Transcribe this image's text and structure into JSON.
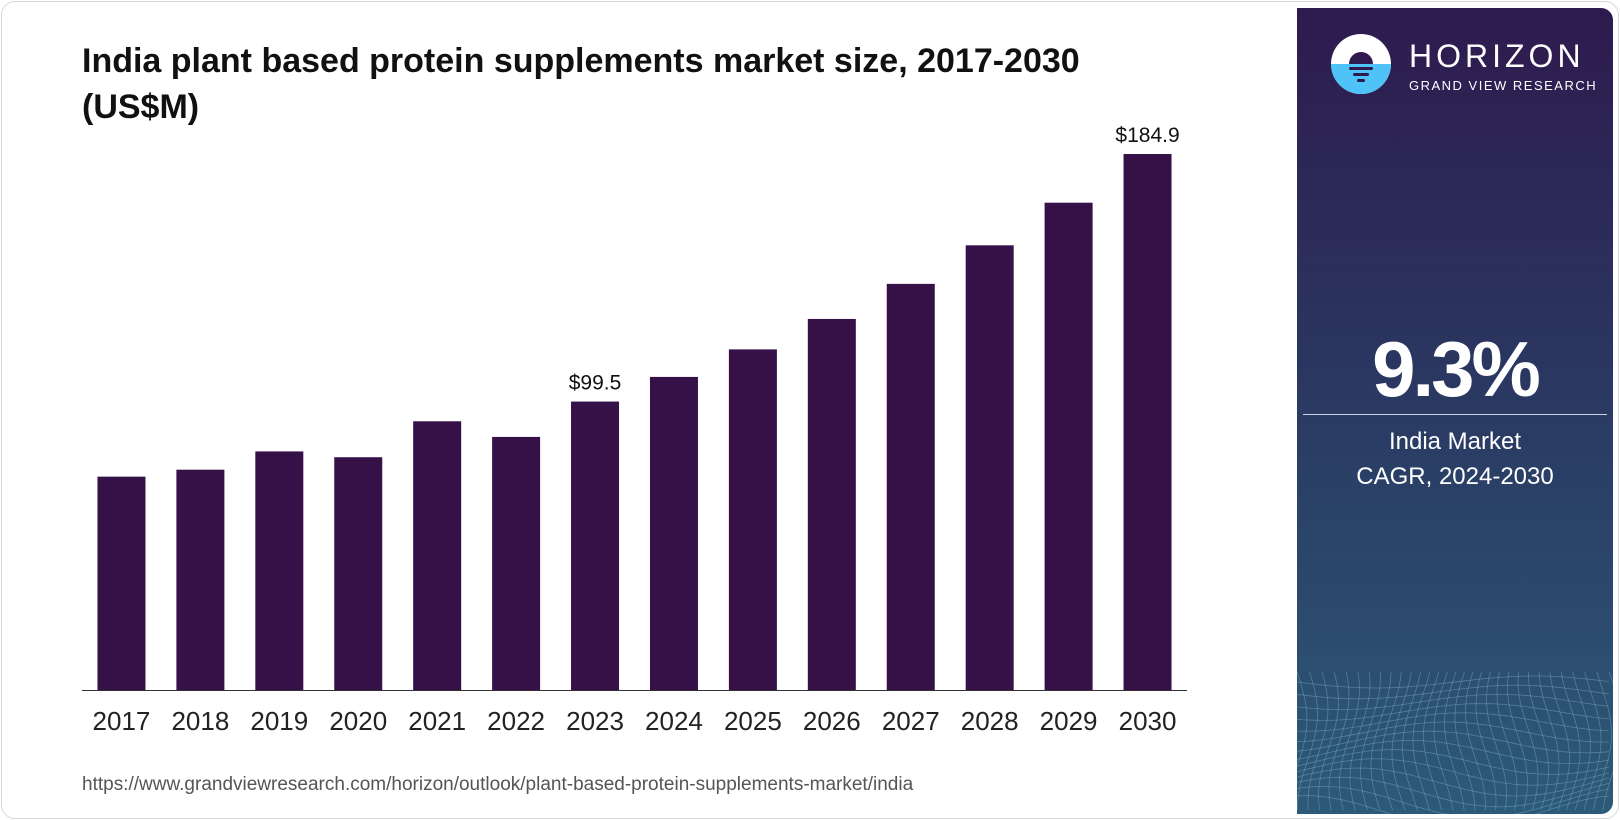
{
  "header": {
    "title": "India plant based protein supplements market size, 2017-2030 (US$M)"
  },
  "source_url": "https://www.grandviewresearch.com/horizon/outlook/plant-based-protein-supplements-market/india",
  "brand": {
    "name": "HORIZON",
    "subtitle": "GRAND VIEW RESEARCH",
    "logo_icon": "sunrise-logo-icon"
  },
  "cagr": {
    "value": "9.3%",
    "line1": "India Market",
    "line2": "CAGR, 2024-2030"
  },
  "colors": {
    "bar": "#361148",
    "panel_top": "#2e1a4e",
    "panel_bottom": "#2d5a78",
    "logo_blue": "#4fc3f7"
  },
  "chart_data": {
    "type": "bar",
    "title": "India plant based protein supplements market size, 2017-2030 (US$M)",
    "categories": [
      "2017",
      "2018",
      "2019",
      "2020",
      "2021",
      "2022",
      "2023",
      "2024",
      "2025",
      "2026",
      "2027",
      "2028",
      "2029",
      "2030"
    ],
    "values": [
      73.6,
      76.0,
      82.3,
      80.3,
      92.7,
      87.3,
      99.5,
      108.0,
      117.5,
      128.0,
      140.1,
      153.4,
      168.1,
      184.9
    ],
    "data_labels": [
      {
        "index": 6,
        "text": "$99.5"
      },
      {
        "index": 13,
        "text": "$184.9"
      }
    ],
    "xlabel": "",
    "ylabel": "",
    "ylim": [
      0,
      200
    ],
    "grid": false,
    "legend": "none"
  }
}
